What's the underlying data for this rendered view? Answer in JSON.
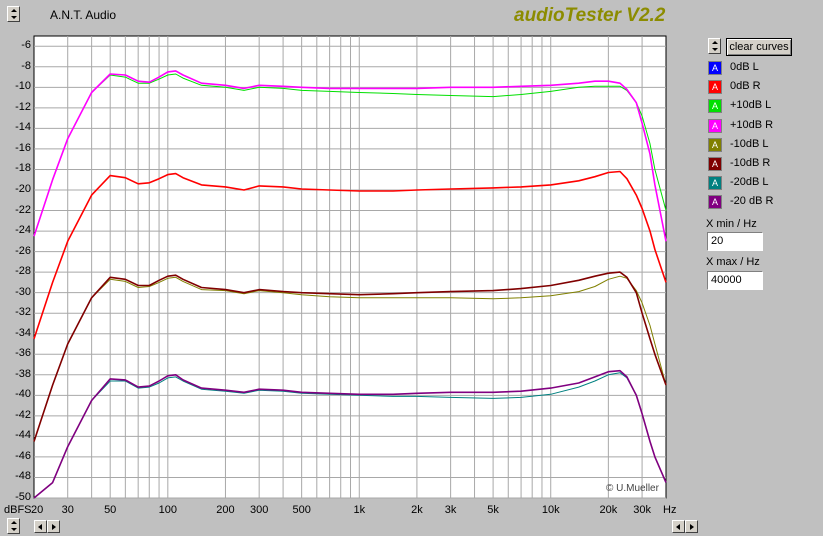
{
  "window": {
    "title": "A.N.T. Audio",
    "brand": "audioTester V2.2"
  },
  "controls": {
    "clear_label": "clear curves",
    "xmin_label": "X min / Hz",
    "xmin_value": "20",
    "xmax_label": "X max / Hz",
    "xmax_value": "40000"
  },
  "copyright": "© U.Mueller",
  "colors": {
    "background": "#c0c0c0",
    "plot_bg": "#ffffff",
    "grid": "#a0a0a0"
  },
  "chart_data": {
    "type": "line",
    "xscale": "log",
    "xlim": [
      20,
      40000
    ],
    "ylim": [
      -50,
      -5
    ],
    "xlabel": "Hz",
    "ylabel": "dBFS",
    "x_ticks": [
      {
        "v": 30,
        "t": "30"
      },
      {
        "v": 50,
        "t": "50"
      },
      {
        "v": 100,
        "t": "100"
      },
      {
        "v": 200,
        "t": "200"
      },
      {
        "v": 300,
        "t": "300"
      },
      {
        "v": 500,
        "t": "500"
      },
      {
        "v": 1000,
        "t": "1k"
      },
      {
        "v": 2000,
        "t": "2k"
      },
      {
        "v": 3000,
        "t": "3k"
      },
      {
        "v": 5000,
        "t": "5k"
      },
      {
        "v": 10000,
        "t": "10k"
      },
      {
        "v": 20000,
        "t": "20k"
      },
      {
        "v": 30000,
        "t": "30k"
      }
    ],
    "x_left_label": "20",
    "y_ticks": [
      -6,
      -8,
      -10,
      -12,
      -14,
      -16,
      -18,
      -20,
      -22,
      -24,
      -26,
      -28,
      -30,
      -32,
      -34,
      -36,
      -38,
      -40,
      -42,
      -44,
      -46,
      -48,
      -50
    ],
    "legend_position": "right",
    "series": [
      {
        "name": "0dB L",
        "color": "#0000ff",
        "visible": false,
        "x": [],
        "y": []
      },
      {
        "name": "0dB R",
        "color": "#ff0000",
        "x": [
          20,
          25,
          30,
          40,
          50,
          60,
          70,
          80,
          90,
          100,
          110,
          120,
          150,
          200,
          250,
          300,
          400,
          500,
          700,
          1000,
          1500,
          2000,
          3000,
          5000,
          7000,
          10000,
          14000,
          17000,
          20000,
          23000,
          25000,
          28000,
          30000,
          33000,
          35000,
          40000
        ],
        "y": [
          -34.5,
          -29,
          -25,
          -20.5,
          -18.6,
          -18.8,
          -19.4,
          -19.3,
          -18.9,
          -18.5,
          -18.4,
          -18.8,
          -19.5,
          -19.7,
          -20.0,
          -19.6,
          -19.7,
          -19.9,
          -20.0,
          -20.1,
          -20.1,
          -20.0,
          -19.9,
          -19.8,
          -19.7,
          -19.5,
          -19.1,
          -18.7,
          -18.3,
          -18.2,
          -18.9,
          -20.5,
          -21.8,
          -24.0,
          -25.8,
          -29.0
        ]
      },
      {
        "name": "+10dB L",
        "color": "#00e000",
        "x": [
          20,
          25,
          30,
          40,
          50,
          60,
          70,
          80,
          90,
          100,
          110,
          120,
          150,
          200,
          250,
          300,
          400,
          500,
          700,
          1000,
          1500,
          2000,
          3000,
          5000,
          7000,
          10000,
          14000,
          17000,
          20000,
          23000,
          25000,
          28000,
          30000,
          33000,
          35000,
          40000
        ],
        "y": [
          -24.5,
          -19,
          -15,
          -10.5,
          -8.8,
          -9.0,
          -9.6,
          -9.6,
          -9.2,
          -8.8,
          -8.7,
          -9.1,
          -9.8,
          -10.0,
          -10.3,
          -10.0,
          -10.1,
          -10.3,
          -10.4,
          -10.5,
          -10.6,
          -10.7,
          -10.8,
          -10.9,
          -10.7,
          -10.4,
          -10.0,
          -9.9,
          -9.9,
          -9.9,
          -10.3,
          -11.5,
          -12.8,
          -15.5,
          -18.0,
          -22.0
        ]
      },
      {
        "name": "+10dB R",
        "color": "#ff00ff",
        "x": [
          20,
          25,
          30,
          40,
          50,
          60,
          70,
          80,
          90,
          100,
          110,
          120,
          150,
          200,
          250,
          300,
          400,
          500,
          700,
          1000,
          1500,
          2000,
          3000,
          5000,
          7000,
          10000,
          14000,
          17000,
          20000,
          23000,
          25000,
          28000,
          30000,
          33000,
          35000,
          40000
        ],
        "y": [
          -24.5,
          -19,
          -15,
          -10.5,
          -8.7,
          -8.8,
          -9.4,
          -9.5,
          -9.0,
          -8.5,
          -8.4,
          -8.8,
          -9.6,
          -9.8,
          -10.1,
          -9.8,
          -9.9,
          -10.0,
          -10.1,
          -10.1,
          -10.1,
          -10.1,
          -10.0,
          -10.0,
          -9.9,
          -9.8,
          -9.6,
          -9.4,
          -9.4,
          -9.6,
          -10.2,
          -11.5,
          -13.5,
          -16.5,
          -19.5,
          -25.0
        ]
      },
      {
        "name": "-10dB L",
        "color": "#808000",
        "x": [
          20,
          25,
          30,
          40,
          50,
          60,
          70,
          80,
          90,
          100,
          110,
          120,
          150,
          200,
          250,
          300,
          400,
          500,
          700,
          1000,
          1500,
          2000,
          3000,
          5000,
          7000,
          10000,
          14000,
          17000,
          20000,
          23000,
          25000,
          28000,
          30000,
          33000,
          35000,
          40000
        ],
        "y": [
          -44.5,
          -39,
          -35,
          -30.5,
          -28.7,
          -28.9,
          -29.5,
          -29.4,
          -29.0,
          -28.6,
          -28.5,
          -28.9,
          -29.7,
          -29.8,
          -30.1,
          -29.8,
          -30.0,
          -30.2,
          -30.4,
          -30.5,
          -30.5,
          -30.5,
          -30.5,
          -30.6,
          -30.5,
          -30.3,
          -29.9,
          -29.4,
          -28.7,
          -28.4,
          -28.6,
          -29.8,
          -31.0,
          -33.2,
          -35.0,
          -39.0
        ]
      },
      {
        "name": "-10dB R",
        "color": "#800000",
        "x": [
          20,
          25,
          30,
          40,
          50,
          60,
          70,
          80,
          90,
          100,
          110,
          120,
          150,
          200,
          250,
          300,
          400,
          500,
          700,
          1000,
          1500,
          2000,
          3000,
          5000,
          7000,
          10000,
          14000,
          17000,
          20000,
          23000,
          25000,
          28000,
          30000,
          33000,
          35000,
          40000
        ],
        "y": [
          -44.5,
          -39,
          -35,
          -30.5,
          -28.5,
          -28.7,
          -29.3,
          -29.3,
          -28.8,
          -28.4,
          -28.3,
          -28.7,
          -29.5,
          -29.7,
          -30.0,
          -29.7,
          -29.9,
          -30.0,
          -30.1,
          -30.2,
          -30.1,
          -30.0,
          -29.9,
          -29.8,
          -29.6,
          -29.3,
          -28.8,
          -28.4,
          -28.1,
          -28.0,
          -28.5,
          -30.0,
          -32.0,
          -34.5,
          -36.0,
          -39.0
        ]
      },
      {
        "name": "-20dB L",
        "color": "#008080",
        "x": [
          20,
          25,
          30,
          40,
          50,
          60,
          70,
          80,
          90,
          100,
          110,
          120,
          150,
          200,
          250,
          300,
          400,
          500,
          700,
          1000,
          1500,
          2000,
          3000,
          5000,
          7000,
          10000,
          14000,
          17000,
          20000,
          23000,
          25000,
          28000,
          30000,
          33000,
          35000,
          40000
        ],
        "y": [
          -50,
          -48.5,
          -45,
          -40.5,
          -38.6,
          -38.6,
          -39.3,
          -39.2,
          -38.8,
          -38.3,
          -38.2,
          -38.6,
          -39.4,
          -39.6,
          -39.8,
          -39.5,
          -39.6,
          -39.8,
          -39.9,
          -40.0,
          -40.1,
          -40.1,
          -40.2,
          -40.3,
          -40.2,
          -39.9,
          -39.2,
          -38.6,
          -38.0,
          -37.8,
          -38.3,
          -40.0,
          -41.8,
          -44.5,
          -46.0,
          -48.5
        ]
      },
      {
        "name": "-20 dB R",
        "color": "#800080",
        "x": [
          20,
          25,
          30,
          40,
          50,
          60,
          70,
          80,
          90,
          100,
          110,
          120,
          150,
          200,
          250,
          300,
          400,
          500,
          700,
          1000,
          1500,
          2000,
          3000,
          5000,
          7000,
          10000,
          14000,
          17000,
          20000,
          23000,
          25000,
          28000,
          30000,
          33000,
          35000,
          40000
        ],
        "y": [
          -50,
          -48.5,
          -45,
          -40.5,
          -38.4,
          -38.5,
          -39.2,
          -39.1,
          -38.6,
          -38.1,
          -38.0,
          -38.5,
          -39.3,
          -39.5,
          -39.7,
          -39.4,
          -39.5,
          -39.7,
          -39.8,
          -39.9,
          -39.9,
          -39.8,
          -39.7,
          -39.7,
          -39.6,
          -39.3,
          -38.8,
          -38.2,
          -37.7,
          -37.6,
          -38.2,
          -40.0,
          -41.8,
          -44.5,
          -46.0,
          -48.5
        ]
      }
    ]
  }
}
